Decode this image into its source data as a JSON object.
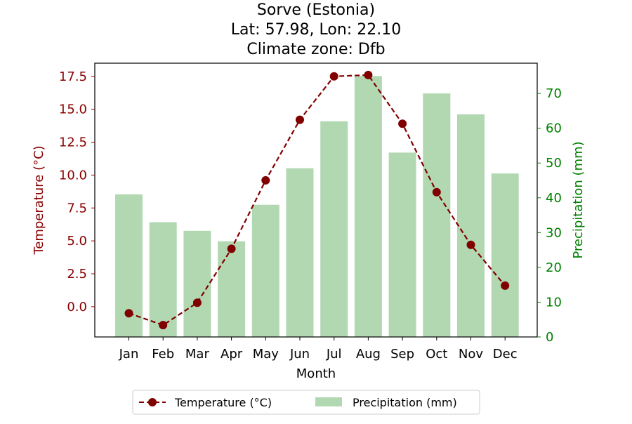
{
  "chart_data": {
    "type": "bar+line",
    "title": {
      "line1": "Sorve (Estonia)",
      "line2": "Lat: 57.98, Lon: 22.10",
      "line3": "Climate zone: Dfb"
    },
    "xlabel": "Month",
    "ylabel_left": "Temperature (°C)",
    "ylabel_right": "Precipitation (mm)",
    "categories": [
      "Jan",
      "Feb",
      "Mar",
      "Apr",
      "May",
      "Jun",
      "Jul",
      "Aug",
      "Sep",
      "Oct",
      "Nov",
      "Dec"
    ],
    "temperature": {
      "name": "Temperature (°C)",
      "values": [
        -0.5,
        -1.4,
        0.3,
        4.4,
        9.6,
        14.2,
        17.5,
        17.6,
        13.9,
        8.7,
        4.7,
        1.6
      ],
      "color": "#800000",
      "style": "dashed line with circle markers"
    },
    "precipitation": {
      "name": "Precipitation (mm)",
      "values": [
        41,
        33,
        30.5,
        27.5,
        38,
        48.5,
        62,
        75,
        53,
        70,
        64,
        47
      ],
      "color": "#b2d8b2"
    },
    "ylim_left": [
      -2.3,
      18.5
    ],
    "ylim_right": [
      0,
      78.7
    ],
    "yticks_left": [
      "0.0",
      "2.5",
      "5.0",
      "7.5",
      "10.0",
      "12.5",
      "15.0",
      "17.5"
    ],
    "yticks_right": [
      "0",
      "10",
      "20",
      "30",
      "40",
      "50",
      "60",
      "70"
    ],
    "yticks_left_values": [
      0,
      2.5,
      5,
      7.5,
      10,
      12.5,
      15,
      17.5
    ],
    "yticks_right_values": [
      0,
      10,
      20,
      30,
      40,
      50,
      60,
      70
    ],
    "grid": false,
    "legend_position": "bottom-center",
    "left_axis_color": "#8b0000",
    "right_axis_color": "#008000"
  }
}
